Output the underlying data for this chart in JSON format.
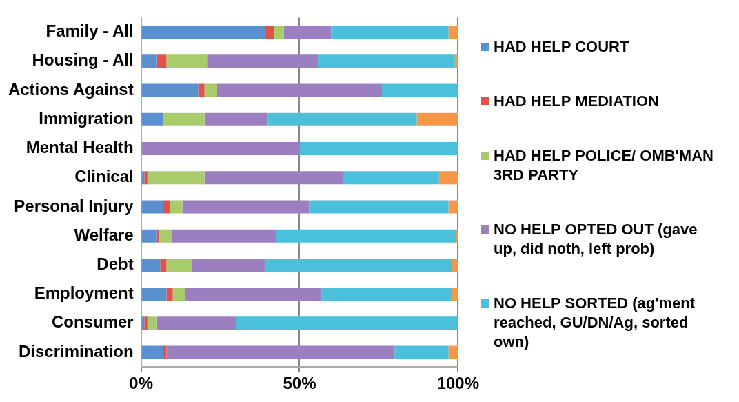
{
  "chart_data": {
    "type": "bar",
    "orientation": "horizontal",
    "stacked": true,
    "categories": [
      "Family - All",
      "Housing - All",
      "Actions Against",
      "Immigration",
      "Mental Health",
      "Clinical",
      "Personal Injury",
      "Welfare",
      "Debt",
      "Employment",
      "Consumer",
      "Discrimination"
    ],
    "series": [
      {
        "name": "HAD HELP COURT",
        "color": "#5a8fd0",
        "values": [
          39,
          5,
          18,
          7,
          0,
          1,
          7,
          5,
          6,
          8,
          1,
          7
        ]
      },
      {
        "name": "HAD HELP MEDIATION",
        "color": "#e0534a",
        "values": [
          3,
          3,
          2,
          0,
          0,
          1,
          2,
          0.5,
          2,
          2,
          1,
          1
        ]
      },
      {
        "name": "HAD HELP POLICE/ OMB'MAN 3RD PARTY",
        "color": "#a8cc6a",
        "values": [
          3,
          13,
          4,
          13,
          0,
          18,
          4,
          4,
          8,
          4,
          3,
          0
        ]
      },
      {
        "name": "NO HELP OPTED OUT (gave up, did noth, left prob)",
        "color": "#9b7fc0",
        "values": [
          15,
          35,
          52,
          20,
          50,
          44,
          40,
          33,
          23,
          43,
          25,
          72
        ]
      },
      {
        "name": "NO HELP SORTED (ag'ment reached, GU/DN/Ag, sorted own)",
        "color": "#4bc0dc",
        "values": [
          37,
          43,
          24,
          47,
          50,
          30,
          44,
          57,
          59,
          41,
          70,
          17
        ]
      },
      {
        "color": "#f79646",
        "values": [
          3,
          1,
          0,
          13,
          0,
          6,
          3,
          0.5,
          2,
          2,
          0,
          3
        ]
      }
    ],
    "xlim": [
      0,
      100
    ],
    "xticks": [
      {
        "value": 0,
        "label": "0%"
      },
      {
        "value": 50,
        "label": "50%"
      },
      {
        "value": 100,
        "label": "100%"
      }
    ],
    "grid": "x",
    "legend": "right"
  }
}
